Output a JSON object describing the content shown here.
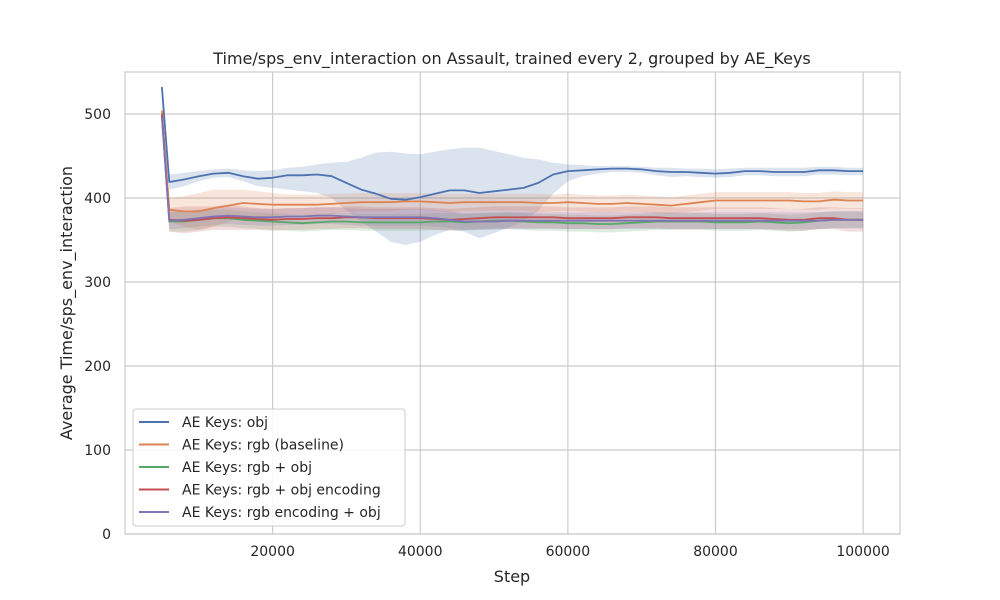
{
  "chart_data": {
    "type": "line",
    "title": "Time/sps_env_interaction on Assault, trained every 2, grouped by AE_Keys",
    "xlabel": "Step",
    "ylabel": "Average Time/sps_env_interaction",
    "xlim": [
      0,
      105000
    ],
    "ylim": [
      0,
      550
    ],
    "xticks": [
      20000,
      40000,
      60000,
      80000,
      100000
    ],
    "yticks": [
      0,
      100,
      200,
      300,
      400,
      500
    ],
    "xtick_labels": [
      "20000",
      "40000",
      "60000",
      "80000",
      "100000"
    ],
    "ytick_labels": [
      "0",
      "100",
      "200",
      "300",
      "400",
      "500"
    ],
    "grid": true,
    "legend_position": "lower-left",
    "x": [
      5000,
      6000,
      8000,
      10000,
      12000,
      14000,
      16000,
      18000,
      20000,
      22000,
      24000,
      26000,
      28000,
      30000,
      32000,
      34000,
      36000,
      38000,
      40000,
      42000,
      44000,
      46000,
      48000,
      50000,
      52000,
      54000,
      56000,
      58000,
      60000,
      62000,
      64000,
      66000,
      68000,
      70000,
      72000,
      74000,
      76000,
      78000,
      80000,
      82000,
      84000,
      86000,
      88000,
      90000,
      92000,
      94000,
      96000,
      98000,
      100000
    ],
    "series": [
      {
        "name": "AE Keys: obj",
        "color": "#4c72b0",
        "values": [
          532,
          419,
          422,
          426,
          429,
          430,
          426,
          423,
          424,
          427,
          427,
          428,
          426,
          418,
          410,
          405,
          399,
          398,
          401,
          405,
          409,
          409,
          406,
          408,
          410,
          412,
          418,
          428,
          432,
          433,
          434,
          435,
          435,
          434,
          432,
          431,
          431,
          430,
          429,
          430,
          432,
          432,
          431,
          431,
          431,
          433,
          433,
          432,
          432
        ],
        "upper": [
          540,
          428,
          430,
          432,
          434,
          435,
          433,
          432,
          433,
          436,
          437,
          440,
          442,
          443,
          448,
          454,
          455,
          453,
          452,
          455,
          458,
          460,
          460,
          456,
          452,
          448,
          446,
          442,
          440,
          439,
          438,
          438,
          438,
          437,
          436,
          436,
          435,
          435,
          434,
          435,
          436,
          436,
          436,
          436,
          436,
          437,
          437,
          436,
          436
        ],
        "lower": [
          522,
          410,
          414,
          420,
          424,
          425,
          420,
          414,
          412,
          410,
          408,
          406,
          400,
          385,
          372,
          360,
          348,
          344,
          348,
          356,
          362,
          360,
          352,
          358,
          365,
          372,
          385,
          405,
          420,
          426,
          429,
          431,
          431,
          430,
          427,
          425,
          426,
          425,
          424,
          425,
          427,
          427,
          426,
          426,
          426,
          428,
          428,
          427,
          427
        ]
      },
      {
        "name": "AE Keys: rgb (baseline)",
        "color": "#dd8452",
        "values": [
          504,
          386,
          384,
          384,
          388,
          391,
          394,
          393,
          392,
          392,
          392,
          392,
          393,
          394,
          395,
          395,
          395,
          396,
          396,
          395,
          394,
          395,
          395,
          395,
          395,
          395,
          394,
          394,
          395,
          394,
          393,
          393,
          394,
          393,
          392,
          391,
          393,
          395,
          397,
          397,
          397,
          397,
          397,
          397,
          396,
          396,
          398,
          397,
          397
        ],
        "upper": [
          512,
          400,
          402,
          406,
          410,
          410,
          410,
          408,
          406,
          404,
          404,
          404,
          405,
          405,
          406,
          406,
          406,
          406,
          406,
          405,
          405,
          405,
          405,
          405,
          405,
          405,
          405,
          404,
          405,
          404,
          403,
          403,
          404,
          403,
          402,
          401,
          403,
          405,
          407,
          407,
          407,
          407,
          407,
          407,
          406,
          406,
          408,
          407,
          407
        ],
        "lower": [
          496,
          372,
          366,
          362,
          366,
          372,
          378,
          378,
          378,
          380,
          380,
          380,
          381,
          383,
          384,
          384,
          384,
          386,
          386,
          385,
          383,
          385,
          385,
          385,
          385,
          385,
          383,
          384,
          385,
          384,
          383,
          383,
          384,
          383,
          382,
          381,
          383,
          385,
          387,
          387,
          387,
          387,
          387,
          387,
          386,
          386,
          388,
          387,
          387
        ]
      },
      {
        "name": "AE Keys: rgb + obj",
        "color": "#55a868",
        "values": [
          498,
          372,
          372,
          374,
          376,
          376,
          374,
          373,
          372,
          371,
          370,
          371,
          372,
          372,
          371,
          371,
          371,
          371,
          371,
          372,
          372,
          371,
          372,
          373,
          373,
          372,
          371,
          371,
          370,
          370,
          369,
          369,
          370,
          371,
          372,
          372,
          372,
          372,
          371,
          371,
          371,
          372,
          371,
          370,
          371,
          373,
          374,
          374,
          374
        ],
        "upper": [
          506,
          384,
          384,
          386,
          386,
          386,
          384,
          383,
          382,
          381,
          380,
          381,
          382,
          382,
          381,
          381,
          381,
          381,
          381,
          382,
          382,
          381,
          382,
          383,
          383,
          382,
          381,
          381,
          380,
          380,
          379,
          379,
          380,
          381,
          382,
          382,
          382,
          382,
          381,
          381,
          381,
          382,
          381,
          380,
          381,
          383,
          384,
          384,
          384
        ],
        "lower": [
          490,
          360,
          360,
          362,
          366,
          366,
          364,
          363,
          362,
          361,
          360,
          361,
          362,
          362,
          361,
          361,
          361,
          361,
          361,
          362,
          362,
          361,
          362,
          363,
          363,
          362,
          361,
          361,
          360,
          360,
          359,
          359,
          360,
          361,
          362,
          362,
          362,
          362,
          361,
          361,
          361,
          362,
          361,
          360,
          361,
          363,
          364,
          364,
          364
        ]
      },
      {
        "name": "AE Keys: rgb + obj encoding",
        "color": "#c44e52",
        "values": [
          500,
          374,
          373,
          374,
          376,
          377,
          376,
          375,
          374,
          375,
          375,
          376,
          376,
          377,
          377,
          376,
          376,
          376,
          376,
          375,
          374,
          375,
          376,
          377,
          377,
          377,
          377,
          377,
          376,
          376,
          376,
          376,
          377,
          377,
          377,
          376,
          376,
          376,
          376,
          376,
          376,
          376,
          375,
          374,
          374,
          376,
          376,
          374,
          374
        ],
        "upper": [
          508,
          388,
          390,
          390,
          390,
          392,
          390,
          388,
          387,
          388,
          388,
          389,
          389,
          390,
          390,
          389,
          389,
          389,
          389,
          388,
          387,
          388,
          389,
          390,
          390,
          390,
          390,
          390,
          389,
          389,
          389,
          389,
          390,
          390,
          390,
          389,
          389,
          389,
          389,
          389,
          389,
          389,
          388,
          387,
          387,
          389,
          389,
          388,
          388
        ],
        "lower": [
          492,
          360,
          358,
          360,
          362,
          362,
          362,
          362,
          361,
          362,
          362,
          363,
          363,
          364,
          364,
          363,
          363,
          363,
          363,
          362,
          361,
          362,
          363,
          364,
          364,
          364,
          364,
          364,
          363,
          363,
          363,
          363,
          364,
          364,
          364,
          363,
          363,
          363,
          363,
          363,
          363,
          363,
          362,
          361,
          361,
          363,
          363,
          360,
          360
        ]
      },
      {
        "name": "AE Keys: rgb encoding + obj",
        "color": "#8172b3",
        "values": [
          496,
          373,
          374,
          376,
          378,
          379,
          378,
          377,
          377,
          378,
          378,
          379,
          379,
          378,
          377,
          377,
          377,
          377,
          377,
          376,
          374,
          372,
          372,
          372,
          373,
          373,
          373,
          373,
          373,
          373,
          373,
          373,
          373,
          373,
          373,
          373,
          373,
          373,
          373,
          373,
          373,
          373,
          373,
          373,
          373,
          373,
          374,
          374,
          374
        ],
        "upper": [
          504,
          383,
          384,
          386,
          388,
          389,
          388,
          387,
          387,
          388,
          388,
          389,
          389,
          388,
          387,
          387,
          387,
          387,
          387,
          386,
          384,
          382,
          382,
          382,
          383,
          383,
          383,
          383,
          383,
          383,
          383,
          383,
          383,
          383,
          383,
          383,
          383,
          383,
          383,
          383,
          383,
          383,
          383,
          383,
          383,
          383,
          384,
          384,
          384
        ],
        "lower": [
          488,
          363,
          364,
          366,
          368,
          369,
          368,
          367,
          367,
          368,
          368,
          369,
          369,
          368,
          367,
          367,
          367,
          367,
          367,
          366,
          364,
          362,
          362,
          362,
          363,
          363,
          363,
          363,
          363,
          363,
          363,
          363,
          363,
          363,
          363,
          363,
          363,
          363,
          363,
          363,
          363,
          363,
          363,
          363,
          363,
          363,
          364,
          364,
          364
        ]
      }
    ]
  }
}
